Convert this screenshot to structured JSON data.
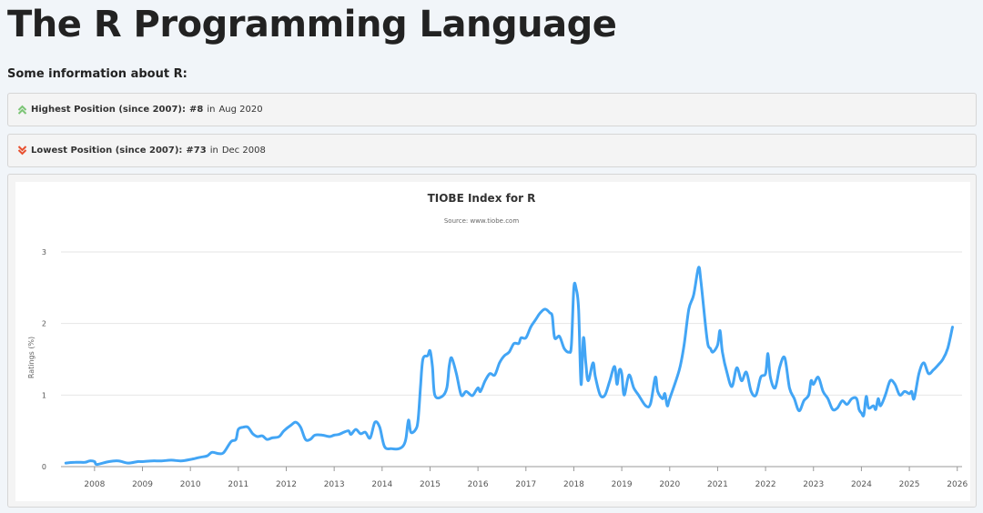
{
  "page": {
    "title": "The R Programming Language",
    "subtitle": "Some information about R:"
  },
  "highest": {
    "label": "Highest Position (since 2007):",
    "rank": "#8",
    "in_word": "in",
    "date": "Aug 2020",
    "icon": "chevron-double-up-icon",
    "color": "#7cc576"
  },
  "lowest": {
    "label": "Lowest Position (since 2007):",
    "rank": "#73",
    "in_word": "in",
    "date": "Dec 2008",
    "icon": "chevron-double-down-icon",
    "color": "#e8502f"
  },
  "chart_data": {
    "type": "line",
    "title": "TIOBE Index for R",
    "subtitle": "Source: www.tiobe.com",
    "ylabel": "Ratings (%)",
    "xlabel": "",
    "xlim": [
      2007.3,
      2026.1
    ],
    "ylim": [
      0,
      3
    ],
    "x_ticks": [
      2008,
      2009,
      2010,
      2011,
      2012,
      2013,
      2014,
      2015,
      2016,
      2017,
      2018,
      2019,
      2020,
      2021,
      2022,
      2023,
      2024,
      2025,
      2026
    ],
    "y_ticks": [
      0,
      1,
      2,
      3
    ],
    "grid": "horizontal",
    "legend": "none",
    "series": [
      {
        "color": "#42a5f5",
        "points": [
          [
            2007.4,
            0.05
          ],
          [
            2007.6,
            0.06
          ],
          [
            2007.8,
            0.06
          ],
          [
            2007.9,
            0.08
          ],
          [
            2008.0,
            0.07
          ],
          [
            2008.05,
            0.03
          ],
          [
            2008.3,
            0.07
          ],
          [
            2008.5,
            0.08
          ],
          [
            2008.7,
            0.05
          ],
          [
            2008.9,
            0.07
          ],
          [
            2009.0,
            0.07
          ],
          [
            2009.2,
            0.08
          ],
          [
            2009.4,
            0.08
          ],
          [
            2009.6,
            0.09
          ],
          [
            2009.8,
            0.08
          ],
          [
            2010.0,
            0.1
          ],
          [
            2010.2,
            0.13
          ],
          [
            2010.35,
            0.15
          ],
          [
            2010.45,
            0.2
          ],
          [
            2010.6,
            0.18
          ],
          [
            2010.7,
            0.2
          ],
          [
            2010.85,
            0.35
          ],
          [
            2010.95,
            0.38
          ],
          [
            2011.0,
            0.52
          ],
          [
            2011.1,
            0.55
          ],
          [
            2011.2,
            0.55
          ],
          [
            2011.3,
            0.46
          ],
          [
            2011.4,
            0.42
          ],
          [
            2011.5,
            0.43
          ],
          [
            2011.6,
            0.38
          ],
          [
            2011.7,
            0.4
          ],
          [
            2011.85,
            0.42
          ],
          [
            2011.95,
            0.5
          ],
          [
            2012.1,
            0.58
          ],
          [
            2012.2,
            0.62
          ],
          [
            2012.3,
            0.55
          ],
          [
            2012.4,
            0.38
          ],
          [
            2012.5,
            0.38
          ],
          [
            2012.6,
            0.44
          ],
          [
            2012.75,
            0.44
          ],
          [
            2012.9,
            0.42
          ],
          [
            2013.0,
            0.44
          ],
          [
            2013.1,
            0.45
          ],
          [
            2013.2,
            0.48
          ],
          [
            2013.3,
            0.5
          ],
          [
            2013.35,
            0.45
          ],
          [
            2013.45,
            0.52
          ],
          [
            2013.55,
            0.46
          ],
          [
            2013.65,
            0.48
          ],
          [
            2013.75,
            0.4
          ],
          [
            2013.85,
            0.62
          ],
          [
            2013.95,
            0.55
          ],
          [
            2014.05,
            0.28
          ],
          [
            2014.2,
            0.25
          ],
          [
            2014.35,
            0.25
          ],
          [
            2014.45,
            0.3
          ],
          [
            2014.5,
            0.4
          ],
          [
            2014.55,
            0.65
          ],
          [
            2014.6,
            0.48
          ],
          [
            2014.7,
            0.52
          ],
          [
            2014.75,
            0.65
          ],
          [
            2014.8,
            1.1
          ],
          [
            2014.85,
            1.5
          ],
          [
            2014.95,
            1.55
          ],
          [
            2015.0,
            1.62
          ],
          [
            2015.05,
            1.4
          ],
          [
            2015.1,
            1.0
          ],
          [
            2015.25,
            0.98
          ],
          [
            2015.35,
            1.1
          ],
          [
            2015.4,
            1.4
          ],
          [
            2015.45,
            1.52
          ],
          [
            2015.55,
            1.3
          ],
          [
            2015.65,
            1.0
          ],
          [
            2015.75,
            1.05
          ],
          [
            2015.85,
            1.0
          ],
          [
            2015.9,
            1.0
          ],
          [
            2016.0,
            1.1
          ],
          [
            2016.05,
            1.05
          ],
          [
            2016.15,
            1.2
          ],
          [
            2016.25,
            1.3
          ],
          [
            2016.35,
            1.28
          ],
          [
            2016.45,
            1.45
          ],
          [
            2016.55,
            1.55
          ],
          [
            2016.65,
            1.6
          ],
          [
            2016.75,
            1.72
          ],
          [
            2016.85,
            1.72
          ],
          [
            2016.9,
            1.8
          ],
          [
            2017.0,
            1.8
          ],
          [
            2017.1,
            1.95
          ],
          [
            2017.2,
            2.05
          ],
          [
            2017.3,
            2.15
          ],
          [
            2017.4,
            2.2
          ],
          [
            2017.5,
            2.15
          ],
          [
            2017.55,
            2.1
          ],
          [
            2017.6,
            1.8
          ],
          [
            2017.7,
            1.82
          ],
          [
            2017.8,
            1.65
          ],
          [
            2017.9,
            1.6
          ],
          [
            2017.95,
            1.7
          ],
          [
            2018.0,
            2.5
          ],
          [
            2018.05,
            2.48
          ],
          [
            2018.1,
            2.2
          ],
          [
            2018.15,
            1.15
          ],
          [
            2018.2,
            1.8
          ],
          [
            2018.25,
            1.45
          ],
          [
            2018.3,
            1.2
          ],
          [
            2018.4,
            1.45
          ],
          [
            2018.45,
            1.25
          ],
          [
            2018.55,
            1.0
          ],
          [
            2018.65,
            1.0
          ],
          [
            2018.75,
            1.2
          ],
          [
            2018.85,
            1.4
          ],
          [
            2018.9,
            1.15
          ],
          [
            2018.95,
            1.35
          ],
          [
            2019.0,
            1.3
          ],
          [
            2019.05,
            1.0
          ],
          [
            2019.15,
            1.28
          ],
          [
            2019.25,
            1.1
          ],
          [
            2019.35,
            1.0
          ],
          [
            2019.5,
            0.85
          ],
          [
            2019.6,
            0.88
          ],
          [
            2019.7,
            1.25
          ],
          [
            2019.75,
            1.05
          ],
          [
            2019.85,
            0.95
          ],
          [
            2019.9,
            1.02
          ],
          [
            2019.95,
            0.85
          ],
          [
            2020.0,
            0.95
          ],
          [
            2020.2,
            1.35
          ],
          [
            2020.3,
            1.7
          ],
          [
            2020.4,
            2.2
          ],
          [
            2020.5,
            2.4
          ],
          [
            2020.6,
            2.78
          ],
          [
            2020.65,
            2.6
          ],
          [
            2020.75,
            1.95
          ],
          [
            2020.8,
            1.7
          ],
          [
            2020.85,
            1.65
          ],
          [
            2020.9,
            1.6
          ],
          [
            2021.0,
            1.7
          ],
          [
            2021.05,
            1.9
          ],
          [
            2021.1,
            1.6
          ],
          [
            2021.2,
            1.3
          ],
          [
            2021.3,
            1.12
          ],
          [
            2021.4,
            1.38
          ],
          [
            2021.5,
            1.2
          ],
          [
            2021.6,
            1.32
          ],
          [
            2021.7,
            1.05
          ],
          [
            2021.8,
            1.0
          ],
          [
            2021.9,
            1.25
          ],
          [
            2022.0,
            1.3
          ],
          [
            2022.05,
            1.58
          ],
          [
            2022.1,
            1.25
          ],
          [
            2022.2,
            1.1
          ],
          [
            2022.3,
            1.4
          ],
          [
            2022.4,
            1.52
          ],
          [
            2022.5,
            1.1
          ],
          [
            2022.6,
            0.95
          ],
          [
            2022.7,
            0.78
          ],
          [
            2022.8,
            0.92
          ],
          [
            2022.9,
            1.0
          ],
          [
            2022.95,
            1.2
          ],
          [
            2023.0,
            1.15
          ],
          [
            2023.1,
            1.25
          ],
          [
            2023.2,
            1.05
          ],
          [
            2023.3,
            0.95
          ],
          [
            2023.4,
            0.8
          ],
          [
            2023.5,
            0.82
          ],
          [
            2023.6,
            0.92
          ],
          [
            2023.7,
            0.87
          ],
          [
            2023.8,
            0.95
          ],
          [
            2023.9,
            0.95
          ],
          [
            2023.95,
            0.8
          ],
          [
            2024.0,
            0.75
          ],
          [
            2024.05,
            0.72
          ],
          [
            2024.1,
            0.98
          ],
          [
            2024.15,
            0.82
          ],
          [
            2024.25,
            0.85
          ],
          [
            2024.3,
            0.8
          ],
          [
            2024.35,
            0.95
          ],
          [
            2024.4,
            0.85
          ],
          [
            2024.5,
            1.0
          ],
          [
            2024.6,
            1.2
          ],
          [
            2024.7,
            1.15
          ],
          [
            2024.8,
            1.0
          ],
          [
            2024.9,
            1.05
          ],
          [
            2025.0,
            1.02
          ],
          [
            2025.05,
            1.05
          ],
          [
            2025.1,
            0.95
          ],
          [
            2025.2,
            1.3
          ],
          [
            2025.3,
            1.45
          ],
          [
            2025.4,
            1.3
          ],
          [
            2025.5,
            1.35
          ],
          [
            2025.6,
            1.42
          ],
          [
            2025.7,
            1.5
          ],
          [
            2025.8,
            1.65
          ],
          [
            2025.9,
            1.95
          ]
        ]
      }
    ]
  }
}
